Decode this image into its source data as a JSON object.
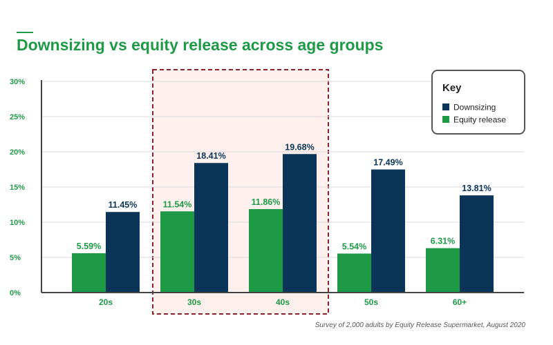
{
  "chart_data": {
    "type": "bar",
    "title": "Downsizing vs equity release across age groups",
    "categories": [
      "20s",
      "30s",
      "40s",
      "50s",
      "60+"
    ],
    "series": [
      {
        "name": "Equity release",
        "values": [
          5.59,
          11.54,
          11.86,
          5.54,
          6.31
        ],
        "labels": [
          "5.59%",
          "11.54%",
          "11.86%",
          "5.54%",
          "6.31%"
        ],
        "color": "#1e9a47"
      },
      {
        "name": "Downsizing",
        "values": [
          11.45,
          18.41,
          19.68,
          17.49,
          13.81
        ],
        "labels": [
          "11.45%",
          "18.41%",
          "19.68%",
          "17.49%",
          "13.81%"
        ],
        "color": "#0b3558"
      }
    ],
    "ylim": [
      0,
      30
    ],
    "yticks": [
      0,
      5,
      10,
      15,
      20,
      25,
      30
    ],
    "ytick_labels": [
      "0%",
      "5%",
      "10%",
      "15%",
      "20%",
      "25%",
      "30%"
    ],
    "grid": true,
    "legend": {
      "title": "Key",
      "placement": "top-right",
      "entries": [
        "Downsizing",
        "Equity release"
      ]
    },
    "highlight": {
      "categories": [
        "30s",
        "40s"
      ],
      "fill": "#fdf0ed",
      "border": "#8b1f2a"
    },
    "source_note": "Survey of 2,000 adults by Equity Release Supermarket, August 2020"
  },
  "colors": {
    "accent": "#1e9a47",
    "navy": "#0b3558"
  }
}
